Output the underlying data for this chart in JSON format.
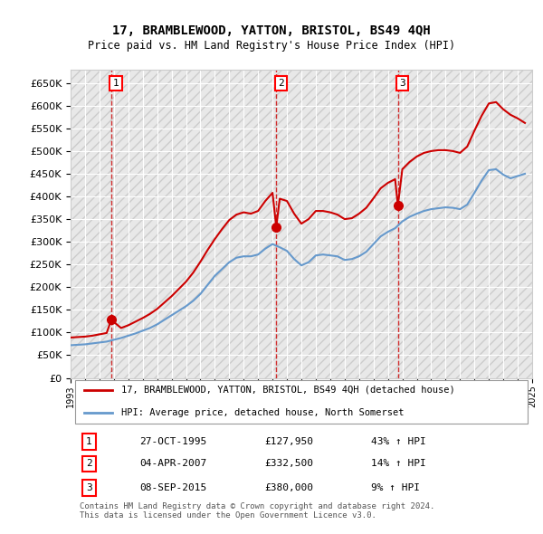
{
  "title": "17, BRAMBLEWOOD, YATTON, BRISTOL, BS49 4QH",
  "subtitle": "Price paid vs. HM Land Registry's House Price Index (HPI)",
  "hpi_label": "HPI: Average price, detached house, North Somerset",
  "price_label": "17, BRAMBLEWOOD, YATTON, BRISTOL, BS49 4QH (detached house)",
  "price_color": "#cc0000",
  "hpi_color": "#6699cc",
  "transactions": [
    {
      "num": 1,
      "date_str": "27-OCT-1995",
      "date_x": 1995.82,
      "price": 127950,
      "pct": "43%",
      "dir": "↑"
    },
    {
      "num": 2,
      "date_str": "04-APR-2007",
      "date_x": 2007.26,
      "price": 332500,
      "pct": "14%",
      "dir": "↑"
    },
    {
      "num": 3,
      "date_str": "08-SEP-2015",
      "date_x": 2015.69,
      "price": 380000,
      "pct": "9%",
      "dir": "↑"
    }
  ],
  "copyright_text": "Contains HM Land Registry data © Crown copyright and database right 2024.\nThis data is licensed under the Open Government Licence v3.0.",
  "ylim": [
    0,
    680000
  ],
  "yticks": [
    0,
    50000,
    100000,
    150000,
    200000,
    250000,
    300000,
    350000,
    400000,
    450000,
    500000,
    550000,
    600000,
    650000
  ],
  "background_color": "#f0f0f0",
  "grid_color": "#ffffff",
  "hpi_data": {
    "years": [
      1993.0,
      1993.5,
      1994.0,
      1994.5,
      1995.0,
      1995.5,
      1996.0,
      1996.5,
      1997.0,
      1997.5,
      1998.0,
      1998.5,
      1999.0,
      1999.5,
      2000.0,
      2000.5,
      2001.0,
      2001.5,
      2002.0,
      2002.5,
      2003.0,
      2003.5,
      2004.0,
      2004.5,
      2005.0,
      2005.5,
      2006.0,
      2006.5,
      2007.0,
      2007.5,
      2008.0,
      2008.5,
      2009.0,
      2009.5,
      2010.0,
      2010.5,
      2011.0,
      2011.5,
      2012.0,
      2012.5,
      2013.0,
      2013.5,
      2014.0,
      2014.5,
      2015.0,
      2015.5,
      2016.0,
      2016.5,
      2017.0,
      2017.5,
      2018.0,
      2018.5,
      2019.0,
      2019.5,
      2020.0,
      2020.5,
      2021.0,
      2021.5,
      2022.0,
      2022.5,
      2023.0,
      2023.5,
      2024.0,
      2024.5
    ],
    "values": [
      72000,
      73000,
      74000,
      76000,
      78000,
      80000,
      84000,
      88000,
      93000,
      98000,
      104000,
      110000,
      118000,
      128000,
      138000,
      148000,
      158000,
      170000,
      185000,
      205000,
      225000,
      240000,
      255000,
      265000,
      268000,
      268000,
      272000,
      285000,
      295000,
      288000,
      280000,
      262000,
      248000,
      255000,
      270000,
      272000,
      270000,
      268000,
      260000,
      262000,
      268000,
      278000,
      295000,
      312000,
      322000,
      330000,
      345000,
      355000,
      362000,
      368000,
      372000,
      374000,
      376000,
      375000,
      372000,
      382000,
      408000,
      435000,
      458000,
      460000,
      448000,
      440000,
      445000,
      450000
    ]
  },
  "price_data": {
    "years": [
      1993.0,
      1993.5,
      1994.0,
      1994.5,
      1995.0,
      1995.5,
      1995.82,
      1996.5,
      1997.0,
      1997.5,
      1998.0,
      1998.5,
      1999.0,
      1999.5,
      2000.0,
      2000.5,
      2001.0,
      2001.5,
      2002.0,
      2002.5,
      2003.0,
      2003.5,
      2004.0,
      2004.5,
      2005.0,
      2005.5,
      2006.0,
      2006.5,
      2007.0,
      2007.26,
      2007.5,
      2008.0,
      2008.5,
      2009.0,
      2009.5,
      2010.0,
      2010.5,
      2011.0,
      2011.5,
      2012.0,
      2012.5,
      2013.0,
      2013.5,
      2014.0,
      2014.5,
      2015.0,
      2015.5,
      2015.69,
      2016.0,
      2016.5,
      2017.0,
      2017.5,
      2018.0,
      2018.5,
      2019.0,
      2019.5,
      2020.0,
      2020.5,
      2021.0,
      2021.5,
      2022.0,
      2022.5,
      2023.0,
      2023.5,
      2024.0,
      2024.5
    ],
    "values": [
      89000,
      90000,
      91000,
      93000,
      96000,
      99000,
      127950,
      110000,
      116000,
      124000,
      132000,
      141000,
      152000,
      166000,
      180000,
      196000,
      212000,
      232000,
      256000,
      282000,
      306000,
      328000,
      348000,
      360000,
      365000,
      362000,
      368000,
      390000,
      408000,
      332500,
      395000,
      390000,
      362000,
      340000,
      350000,
      368000,
      368000,
      365000,
      360000,
      350000,
      352000,
      362000,
      375000,
      396000,
      418000,
      430000,
      438000,
      380000,
      460000,
      476000,
      488000,
      496000,
      500000,
      502000,
      502000,
      500000,
      496000,
      510000,
      545000,
      578000,
      605000,
      608000,
      592000,
      580000,
      572000,
      562000
    ]
  },
  "xmin": 1993,
  "xmax": 2025,
  "xticks": [
    1993,
    1994,
    1995,
    1996,
    1997,
    1998,
    1999,
    2000,
    2001,
    2002,
    2003,
    2004,
    2005,
    2006,
    2007,
    2008,
    2009,
    2010,
    2011,
    2012,
    2013,
    2014,
    2015,
    2016,
    2017,
    2018,
    2019,
    2020,
    2021,
    2022,
    2023,
    2024,
    2025
  ]
}
